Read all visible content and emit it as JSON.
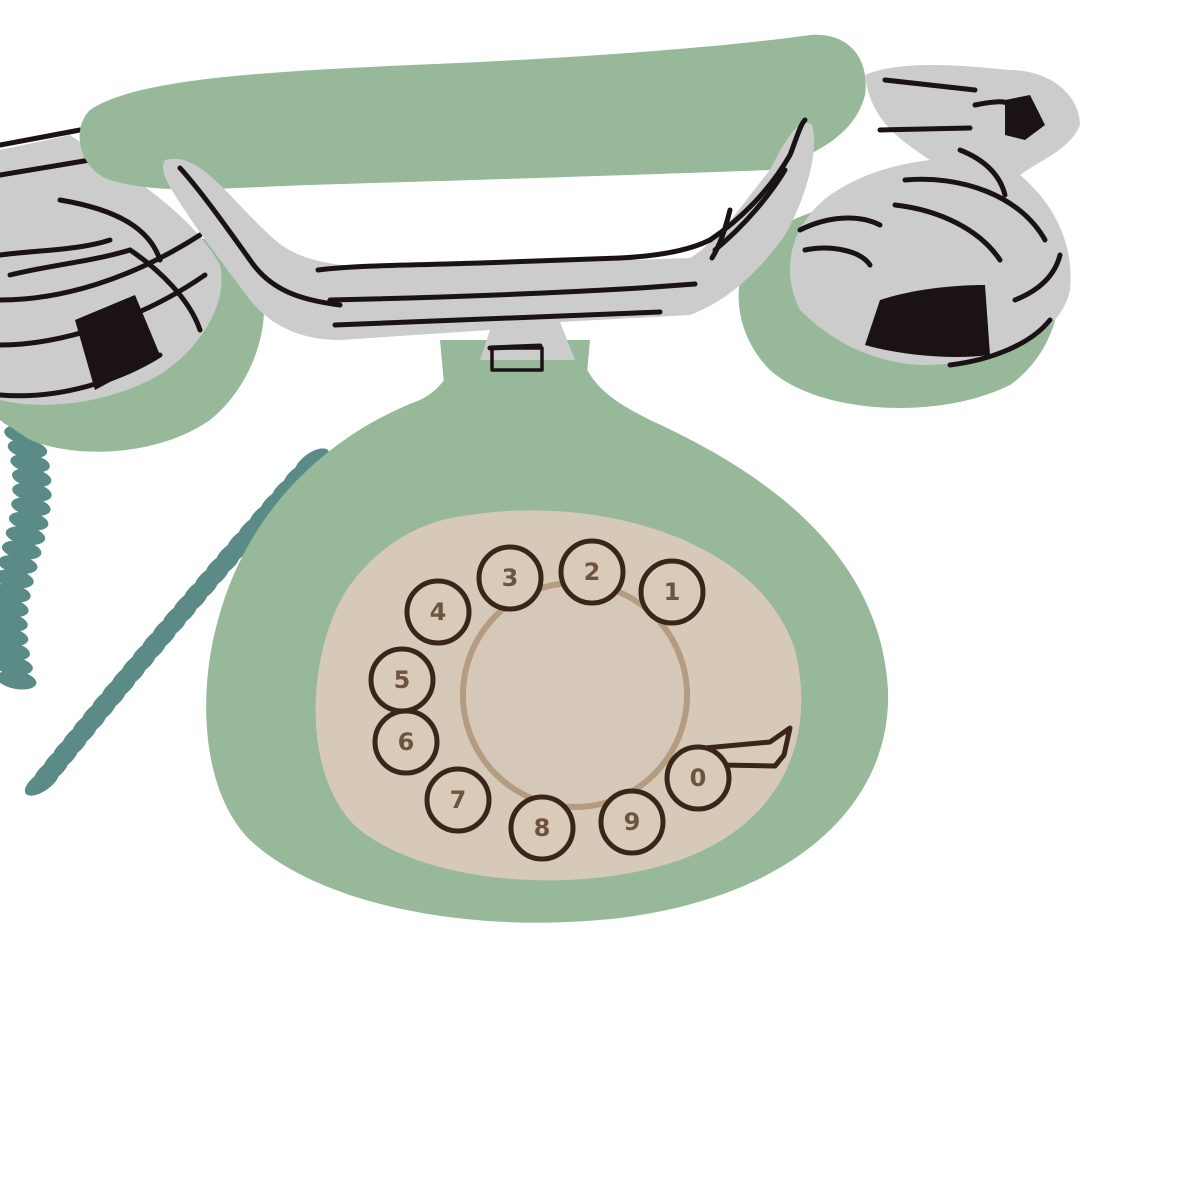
{
  "colors": {
    "body_green": "#97b99a",
    "chrome_gray": "#cccccc",
    "ink_black": "#1a1214",
    "dial_beige": "#d7c9b8",
    "dial_ring": "#b39c82",
    "finger_hole_outline": "#3a2618",
    "digit_brown": "#6e5440",
    "cord_teal": "#5b8b86",
    "background": "#ffffff"
  },
  "dial": {
    "digits": [
      "1",
      "2",
      "3",
      "4",
      "5",
      "6",
      "7",
      "8",
      "9",
      "0"
    ]
  }
}
